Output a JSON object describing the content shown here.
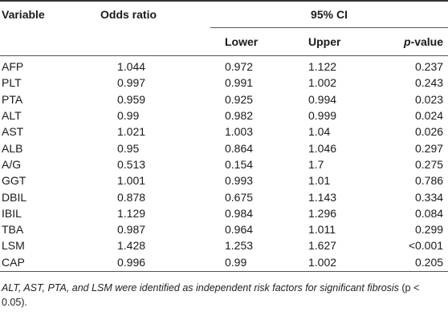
{
  "table": {
    "headers": {
      "variable": "Variable",
      "odds_ratio": "Odds ratio",
      "ci": "95% CI",
      "lower": "Lower",
      "upper": "Upper",
      "p_italic": "p",
      "p_rest": "-value"
    },
    "rows": [
      {
        "variable": "AFP",
        "odds_ratio": "1.044",
        "lower": "0.972",
        "upper": "1.122",
        "p": "0.237"
      },
      {
        "variable": "PLT",
        "odds_ratio": "0.997",
        "lower": "0.991",
        "upper": "1.002",
        "p": "0.243"
      },
      {
        "variable": "PTA",
        "odds_ratio": "0.959",
        "lower": "0.925",
        "upper": "0.994",
        "p": "0.023"
      },
      {
        "variable": "ALT",
        "odds_ratio": "0.99",
        "lower": "0.982",
        "upper": "0.999",
        "p": "0.024"
      },
      {
        "variable": "AST",
        "odds_ratio": "1.021",
        "lower": "1.003",
        "upper": "1.04",
        "p": "0.026"
      },
      {
        "variable": "ALB",
        "odds_ratio": "0.95",
        "lower": "0.864",
        "upper": "1.046",
        "p": "0.297"
      },
      {
        "variable": "A/G",
        "odds_ratio": "0.513",
        "lower": "0.154",
        "upper": "1.7",
        "p": "0.275"
      },
      {
        "variable": "GGT",
        "odds_ratio": "1.001",
        "lower": "0.993",
        "upper": "1.01",
        "p": "0.786"
      },
      {
        "variable": "DBIL",
        "odds_ratio": "0.878",
        "lower": "0.675",
        "upper": "1.143",
        "p": "0.334"
      },
      {
        "variable": "IBIL",
        "odds_ratio": "1.129",
        "lower": "0.984",
        "upper": "1.296",
        "p": "0.084"
      },
      {
        "variable": "TBA",
        "odds_ratio": "0.987",
        "lower": "0.964",
        "upper": "1.011",
        "p": "0.299"
      },
      {
        "variable": "LSM",
        "odds_ratio": "1.428",
        "lower": "1.253",
        "upper": "1.627",
        "p": "<0.001"
      },
      {
        "variable": "CAP",
        "odds_ratio": "0.996",
        "lower": "0.99",
        "upper": "1.002",
        "p": "0.205"
      }
    ]
  },
  "footnote": {
    "italic_part": "ALT, AST, PTA, and LSM were identified as independent risk factors for significant fibrosis",
    "plain_part": " (p < 0.05)",
    "end": "."
  }
}
